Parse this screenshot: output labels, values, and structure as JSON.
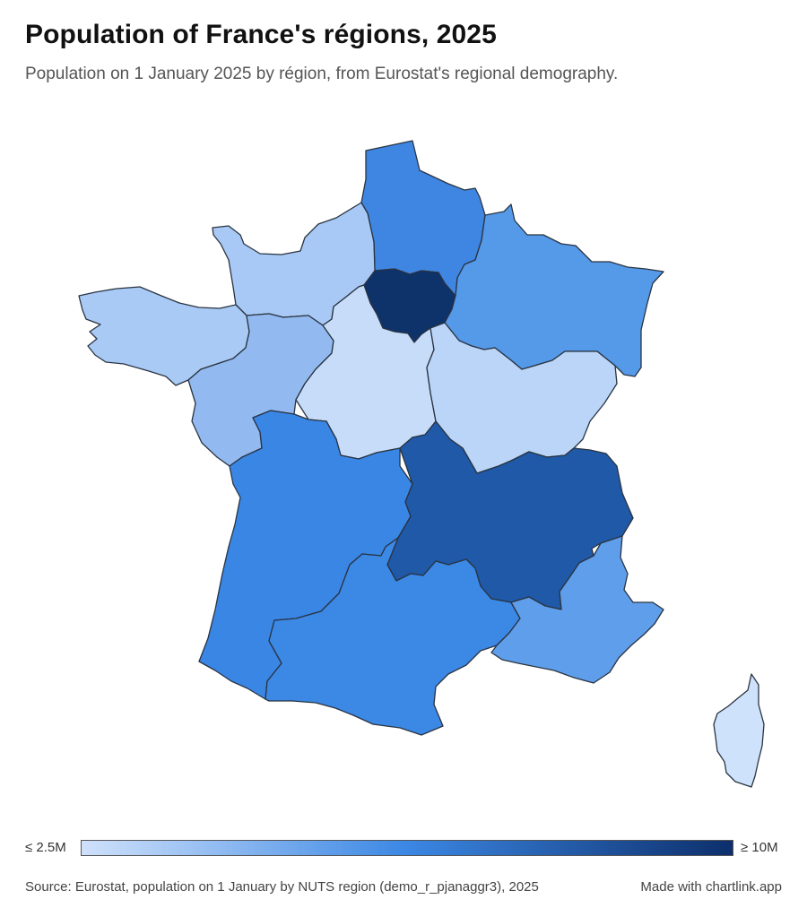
{
  "header": {
    "title": "Population of France's régions, 2025",
    "subtitle": "Population on 1 January 2025 by région, from Eurostat's regional demography."
  },
  "legend": {
    "min_label": "≤ 2.5M",
    "max_label": "≥ 10M",
    "min_value": 2.5,
    "max_value": 10,
    "color_min": "#cfe1fb",
    "color_mid": "#3b87e4",
    "color_max": "#0d2f6c"
  },
  "footer": {
    "source": "Source: Eurostat, population on 1 January by NUTS region (demo_r_pjanaggr3), 2025",
    "credit": "Made with chartlink.app"
  },
  "regions": [
    {
      "id": "hauts-de-france",
      "fill": "#3f86e2"
    },
    {
      "id": "normandie",
      "fill": "#a8c9f5"
    },
    {
      "id": "ile-de-france",
      "fill": "#0e326a"
    },
    {
      "id": "grand-est",
      "fill": "#5599e9"
    },
    {
      "id": "bretagne",
      "fill": "#a9caf5"
    },
    {
      "id": "pays-de-la-loire",
      "fill": "#93baf0"
    },
    {
      "id": "centre-val-de-loire",
      "fill": "#c6dcf9"
    },
    {
      "id": "bourgogne-franche-comte",
      "fill": "#bad5f7"
    },
    {
      "id": "nouvelle-aquitaine",
      "fill": "#3a86e5"
    },
    {
      "id": "auvergne-rhone-alpes",
      "fill": "#1f59a7"
    },
    {
      "id": "occitanie",
      "fill": "#3b88e5"
    },
    {
      "id": "provence-alpes-cote-d-azur",
      "fill": "#5f9eea"
    },
    {
      "id": "corse",
      "fill": "#cfe2fb"
    }
  ]
}
